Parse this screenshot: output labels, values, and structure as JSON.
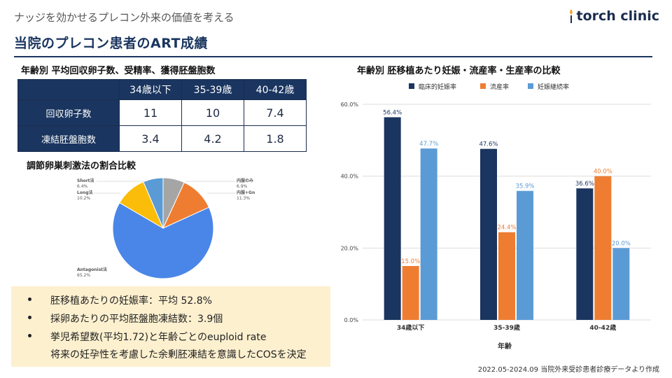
{
  "header": {
    "subtitle": "ナッジを効かせるプレコン外来の価値を考える",
    "title": "当院のプレコン患者のART成績",
    "logo_text": "torch clinic"
  },
  "table": {
    "title": "年齢別 平均回収卵子数、受精率、獲得胚盤胞数",
    "columns": [
      "34歳以下",
      "35-39歳",
      "40-42歳"
    ],
    "rows": [
      {
        "label": "回収卵子数",
        "values": [
          "11",
          "10",
          "7.4"
        ]
      },
      {
        "label": "凍結胚盤胞数",
        "values": [
          "3.4",
          "4.2",
          "1.8"
        ]
      }
    ]
  },
  "pie": {
    "title": "調節卵巣刺激法の割合比較",
    "labels": {
      "short": "Short法",
      "short_pct": "6.4%",
      "long": "Long法",
      "long_pct": "10.2%",
      "oral": "内服のみ",
      "oral_pct": "6.9%",
      "oralgn": "内服+Gn",
      "oralgn_pct": "11.3%",
      "antagonist": "Antagonist法",
      "antagonist_pct": "65.2%"
    }
  },
  "summary": {
    "items": [
      "胚移植あたりの妊娠率：平均 52.8%",
      "採卵あたりの平均胚盤胞凍結数：3.9個",
      "挙児希望数(平均1.72)と年齢ごとのeuploid rate",
      "将来の妊孕性を考慮した余剰胚凍結を意識したCOSを決定"
    ]
  },
  "chart_title": "年齢別 胚移植あたり妊娠・流産率・生産率の比較",
  "footnote": "2022.05-2024.09 当院外来受診患者診療データより作成",
  "colors": {
    "navy": "#1a355f",
    "orange": "#ee7d31",
    "lightblue": "#5b9bd5",
    "gray": "#a5a5a5",
    "yellow": "#fbbd0a",
    "pie_blue": "#4a86e8"
  },
  "chart_data": [
    {
      "type": "pie",
      "title": "調節卵巣刺激法の割合比較",
      "slices": [
        {
          "name": "内服のみ",
          "value": 6.9,
          "color": "#a5a5a5"
        },
        {
          "name": "内服+Gn",
          "value": 11.3,
          "color": "#ee7d31"
        },
        {
          "name": "Antagonist法",
          "value": 65.2,
          "color": "#4a86e8"
        },
        {
          "name": "Long法",
          "value": 10.2,
          "color": "#fbbd0a"
        },
        {
          "name": "Short法",
          "value": 6.4,
          "color": "#5b9bd5"
        }
      ]
    },
    {
      "type": "bar",
      "title": "年齢別 胚移植あたり妊娠・流産率・生産率の比較",
      "categories": [
        "34歳以下",
        "35-39歳",
        "40-42歳"
      ],
      "series": [
        {
          "name": "臨床的妊娠率",
          "values": [
            56.4,
            47.6,
            36.6
          ],
          "labels": [
            "56.4%",
            "47.6%",
            "36.6%"
          ],
          "color": "#1a355f"
        },
        {
          "name": "流産率",
          "values": [
            15.0,
            24.4,
            40.0
          ],
          "labels": [
            "15.0%",
            "24.4%",
            "40.0%"
          ],
          "color": "#ee7d31"
        },
        {
          "name": "妊娠継続率",
          "values": [
            47.7,
            35.9,
            20.0
          ],
          "labels": [
            "47.7%",
            "35.9%",
            "20.0%"
          ],
          "color": "#5b9bd5"
        }
      ],
      "xlabel": "年齢",
      "ylabel": "",
      "ylim": [
        0,
        60
      ],
      "yticks": [
        "0.0%",
        "20.0%",
        "40.0%",
        "60.0%"
      ],
      "ytick_values": [
        0,
        20,
        40,
        60
      ],
      "grid": true,
      "legend": "top"
    }
  ]
}
